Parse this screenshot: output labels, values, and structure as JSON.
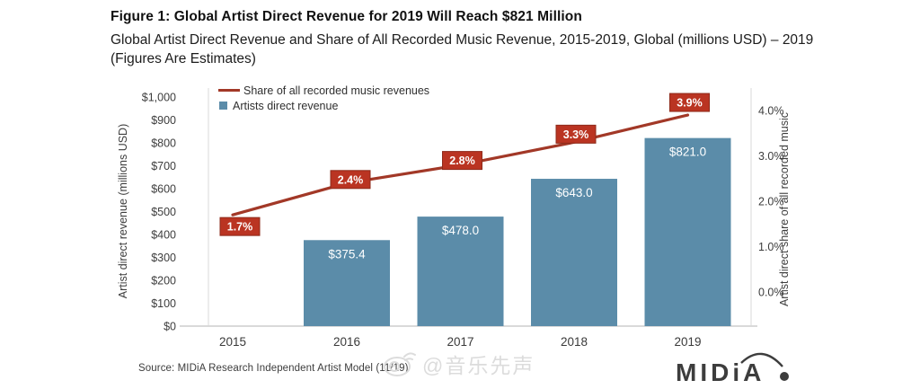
{
  "header": {
    "title": "Figure 1: Global Artist Direct Revenue for 2019 Will Reach $821 Million",
    "subtitle": "Global Artist Direct Revenue and Share of All Recorded Music Revenue, 2015-2019, Global (millions USD) – 2019 (Figures Are Estimates)"
  },
  "chart_data": {
    "type": "bar",
    "subtype": "combo-bar-line-dual-axis",
    "categories": [
      "2015",
      "2016",
      "2017",
      "2018",
      "2019"
    ],
    "series": [
      {
        "name": "Artists direct revenue",
        "type": "bar",
        "axis": "left",
        "values": [
          null,
          375.4,
          478.0,
          643.0,
          821.0
        ],
        "labels": [
          null,
          "$375.4",
          "$478.0",
          "$643.0",
          "$821.0"
        ],
        "color": "#5b8ca9"
      },
      {
        "name": "Share of all recorded music revenues",
        "type": "line",
        "axis": "right",
        "values": [
          1.7,
          2.4,
          2.8,
          3.3,
          3.9
        ],
        "labels": [
          "1.7%",
          "2.4%",
          "2.8%",
          "3.3%",
          "3.9%"
        ],
        "color": "#a23827",
        "label_bg": "#ba3422"
      }
    ],
    "left_axis": {
      "title": "Artist direct revenue (millions USD)",
      "min": 0,
      "max": 1000,
      "step": 100,
      "ticks": [
        "$0",
        "$100",
        "$200",
        "$300",
        "$400",
        "$500",
        "$600",
        "$700",
        "$800",
        "$900",
        "$1,000"
      ]
    },
    "right_axis": {
      "title": "Artist direct share of all recorded music",
      "min": 0,
      "max": 4,
      "step": 1,
      "ticks": [
        "0.0%",
        "1.0%",
        "2.0%",
        "3.0%",
        "4.0%"
      ]
    },
    "legend_position": "top-left",
    "grid": false
  },
  "footer": {
    "source": "Source: MIDiA Research Independent Artist Model (11/19)",
    "watermark": "@音乐先声",
    "logo_text": "MIDiA"
  },
  "colors": {
    "bar": "#5b8ca9",
    "line": "#a23827",
    "line_label_bg": "#ba3422",
    "axis_line": "#d9d9d9",
    "tick_text": "#3d3d3d",
    "logo": "#3d3d3d"
  }
}
